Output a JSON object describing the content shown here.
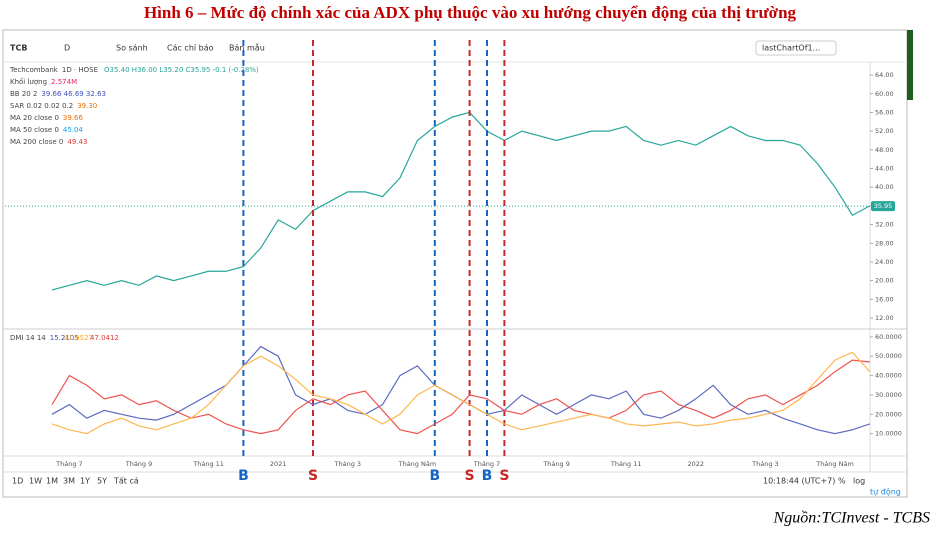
{
  "figure_title": "Hình 6 – Mức độ chính xác của ADX phụ thuộc vào xu hướng chuyển động của thị trường",
  "toolbar": {
    "symbol": "TCB",
    "interval": "D",
    "compare": "So sánh",
    "indicators": "Các chỉ báo",
    "template": "Bản mẫu",
    "layout": "lastChartOf1..."
  },
  "legend": [
    {
      "label": "1D · HOSE",
      "value": "O35.40 H36.00 L35.20 C35.95 -0.1 (-0.28%)",
      "color": "#26a69a"
    },
    {
      "label": "Khối lượng",
      "value": "2.574M",
      "color": "#e91e63"
    },
    {
      "label": "BB 20 2",
      "value": "39.66 46.69 32.63",
      "color": "#3f51b5"
    },
    {
      "label": "SAR 0.02 0.02 0.2",
      "value": "39.30",
      "color": "#ef6c00"
    },
    {
      "label": "MA 20 close 0",
      "value": "39.66",
      "color": "#ef6c00"
    },
    {
      "label": "MA 50 close 0",
      "value": "45.04",
      "color": "#03a9f4"
    },
    {
      "label": "MA 200 close 0",
      "value": "49.43",
      "color": "#e53935"
    },
    {
      "label": "DMI 14 14",
      "value": "15.2105",
      "color": "#3f51b5"
    },
    {
      "label": "",
      "value": "41.9527",
      "color": "#f9a825"
    },
    {
      "label": "",
      "value": "47.0412",
      "color": "#e53935"
    }
  ],
  "chart_data": [
    {
      "type": "line",
      "categories": [
        null,
        "Tháng 7",
        null,
        null,
        null,
        "Tháng 9",
        null,
        null,
        null,
        "Tháng 11",
        null,
        null,
        null,
        "2021",
        null,
        null,
        null,
        "Tháng 3",
        null,
        null,
        null,
        "Tháng Năm",
        null,
        null,
        null,
        "Tháng 7",
        null,
        null,
        null,
        "Tháng 9",
        null,
        null,
        null,
        "Tháng 11",
        null,
        null,
        null,
        "2022",
        null,
        null,
        null,
        "Tháng 3",
        null,
        null,
        null,
        "Tháng Năm",
        null,
        null
      ],
      "series": [
        {
          "name": "Techcombank",
          "color": "#26a69a",
          "values": [
            18,
            19,
            20,
            19,
            20,
            19,
            21,
            20,
            21,
            22,
            22,
            23,
            27,
            33,
            31,
            35,
            37,
            39,
            39,
            38,
            42,
            50,
            53,
            55,
            56,
            52,
            50,
            52,
            51,
            50,
            51,
            52,
            52,
            53,
            50,
            49,
            50,
            49,
            51,
            53,
            51,
            50,
            50,
            49,
            45,
            40,
            34,
            36
          ]
        }
      ],
      "last_price": 35.95,
      "ylim": [
        10.5,
        66.8
      ],
      "yticks": [
        {
          "value": 12,
          "label": "12.00"
        },
        {
          "value": 16,
          "label": "16.00"
        },
        {
          "value": 20,
          "label": "20.00"
        },
        {
          "value": 24,
          "label": "24.00"
        },
        {
          "value": 28,
          "label": "28.00"
        },
        {
          "value": 32,
          "label": "32.00"
        },
        {
          "value": 36,
          "label": "36.00"
        },
        {
          "value": 40,
          "label": "40.00"
        },
        {
          "value": 44,
          "label": "44.00"
        },
        {
          "value": 48,
          "label": "48.00"
        },
        {
          "value": 52,
          "label": "52.00"
        },
        {
          "value": 56,
          "label": "56.00"
        },
        {
          "value": 60,
          "label": "60.00"
        },
        {
          "value": 64,
          "label": "64.00"
        }
      ],
      "signals": [
        {
          "label": "B",
          "x": 11,
          "color": "#1565c0"
        },
        {
          "label": "S",
          "x": 15,
          "color": "#c62828"
        },
        {
          "label": "B",
          "x": 22,
          "color": "#1565c0"
        },
        {
          "label": "S",
          "x": 24,
          "color": "#c62828"
        },
        {
          "label": "B",
          "x": 25,
          "color": "#1565c0"
        },
        {
          "label": "S",
          "x": 26,
          "color": "#c62828"
        }
      ]
    },
    {
      "type": "line",
      "series": [
        {
          "color": "#5c6bc0",
          "values": [
            20,
            25,
            18,
            22,
            20,
            18,
            17,
            20,
            25,
            30,
            35,
            45,
            55,
            50,
            30,
            25,
            28,
            22,
            20,
            25,
            40,
            45,
            35,
            30,
            25,
            20,
            22,
            30,
            25,
            20,
            25,
            30,
            28,
            32,
            20,
            18,
            22,
            28,
            35,
            25,
            20,
            22,
            18,
            15,
            12,
            10,
            12,
            15
          ]
        },
        {
          "color": "#ef5350",
          "values": [
            25,
            40,
            35,
            28,
            30,
            25,
            27,
            22,
            18,
            20,
            15,
            12,
            10,
            12,
            22,
            28,
            25,
            30,
            32,
            22,
            12,
            10,
            15,
            20,
            30,
            28,
            22,
            20,
            25,
            28,
            22,
            20,
            18,
            22,
            30,
            32,
            25,
            22,
            18,
            22,
            28,
            30,
            25,
            30,
            35,
            42,
            48,
            47
          ]
        },
        {
          "color": "#ffb74d",
          "values": [
            15,
            12,
            10,
            15,
            18,
            14,
            12,
            15,
            18,
            25,
            35,
            45,
            50,
            45,
            38,
            30,
            28,
            25,
            20,
            15,
            20,
            30,
            35,
            30,
            25,
            20,
            15,
            12,
            14,
            16,
            18,
            20,
            18,
            15,
            14,
            15,
            16,
            14,
            15,
            17,
            18,
            20,
            22,
            28,
            38,
            48,
            52,
            42
          ]
        }
      ],
      "ylim": [
        0,
        62
      ],
      "yticks": [
        {
          "value": 10,
          "label": "10.0000"
        },
        {
          "value": 20,
          "label": "20.0000"
        },
        {
          "value": 30,
          "label": "30.0000"
        },
        {
          "value": 40,
          "label": "40.0000"
        },
        {
          "value": 50,
          "label": "50.0000"
        },
        {
          "value": 60,
          "label": "60.0000"
        }
      ]
    }
  ],
  "bottom_bar": {
    "ranges": [
      "1D",
      "1W",
      "1M",
      "3M",
      "1Y",
      "5Y",
      "Tất cả"
    ],
    "time": "10:18:44 (UTC+7)",
    "percent": "%",
    "log": "log",
    "auto": "tự động"
  },
  "source": "Nguồn:TCInvest - TCBS"
}
